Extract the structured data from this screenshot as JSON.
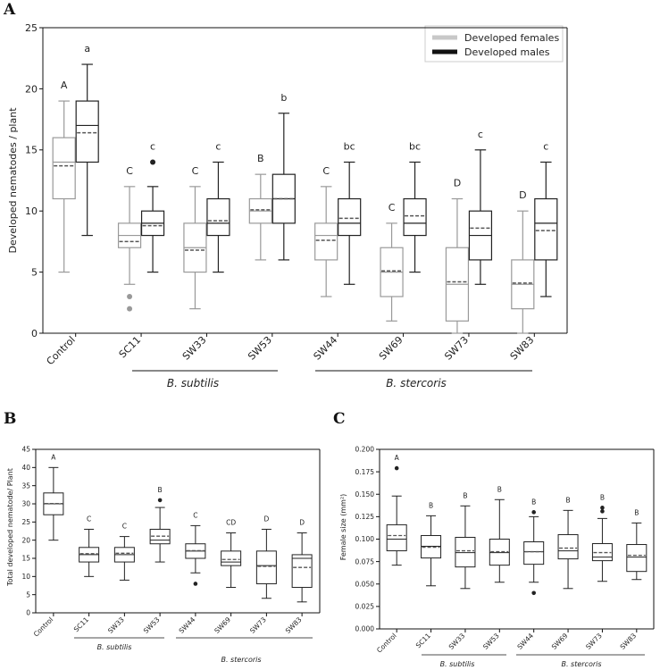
{
  "panels": {
    "A": {
      "letter": "A",
      "ylabel": "Developed nematodes / plant",
      "legend": [
        {
          "label": "Developed females",
          "color": "#c8c8c8"
        },
        {
          "label": "Developed males",
          "color": "#111111"
        }
      ],
      "group_labels": [
        "B. subtilis",
        "B. stercoris"
      ]
    },
    "B": {
      "letter": "B",
      "ylabel": "Total developed nematode/ Plant",
      "group_labels": [
        "B. subtilis",
        "B. stercoris"
      ]
    },
    "C": {
      "letter": "C",
      "ylabel": "Female size (mm²)",
      "group_labels": [
        "B. subtilis",
        "B. stercoris"
      ]
    }
  },
  "chart_data": [
    {
      "type": "box",
      "panel": "A",
      "categories": [
        "Control",
        "SC11",
        "SW33",
        "SW53",
        "SW44",
        "SW69",
        "SW73",
        "SW83"
      ],
      "ylim": [
        0,
        25
      ],
      "yticks": [
        0,
        5,
        10,
        15,
        20,
        25
      ],
      "legend_position": "top-right",
      "series": [
        {
          "name": "Developed females",
          "color": "#999999",
          "boxes": [
            {
              "min": 5,
              "q1": 11,
              "median": 14,
              "mean": 13.7,
              "q3": 16,
              "max": 19,
              "outliers": [],
              "letter": "A"
            },
            {
              "min": 4,
              "q1": 7,
              "median": 8,
              "mean": 7.5,
              "q3": 9,
              "max": 12,
              "outliers": [
                3,
                2
              ],
              "letter": "C"
            },
            {
              "min": 2,
              "q1": 5,
              "median": 7,
              "mean": 6.8,
              "q3": 9,
              "max": 12,
              "outliers": [],
              "letter": "C"
            },
            {
              "min": 6,
              "q1": 9,
              "median": 10,
              "mean": 10.1,
              "q3": 11,
              "max": 13,
              "outliers": [],
              "letter": "B"
            },
            {
              "min": 3,
              "q1": 6,
              "median": 8,
              "mean": 7.6,
              "q3": 9,
              "max": 12,
              "outliers": [],
              "letter": "C"
            },
            {
              "min": 1,
              "q1": 3,
              "median": 5,
              "mean": 5.1,
              "q3": 7,
              "max": 9,
              "outliers": [],
              "letter": "C"
            },
            {
              "min": 0,
              "q1": 1,
              "median": 4,
              "mean": 4.2,
              "q3": 7,
              "max": 11,
              "outliers": [],
              "letter": "D"
            },
            {
              "min": 0,
              "q1": 2,
              "median": 4,
              "mean": 4.1,
              "q3": 6,
              "max": 10,
              "outliers": [],
              "letter": "D"
            }
          ]
        },
        {
          "name": "Developed males",
          "color": "#222222",
          "boxes": [
            {
              "min": 8,
              "q1": 14,
              "median": 17,
              "mean": 16.4,
              "q3": 19,
              "max": 22,
              "outliers": [],
              "letter": "a"
            },
            {
              "min": 5,
              "q1": 8,
              "median": 9,
              "mean": 8.8,
              "q3": 10,
              "max": 12,
              "outliers": [
                14
              ],
              "letter": "c"
            },
            {
              "min": 5,
              "q1": 8,
              "median": 9,
              "mean": 9.2,
              "q3": 11,
              "max": 14,
              "outliers": [],
              "letter": "c"
            },
            {
              "min": 6,
              "q1": 9,
              "median": 11,
              "mean": 11,
              "q3": 13,
              "max": 18,
              "outliers": [],
              "letter": "b"
            },
            {
              "min": 4,
              "q1": 8,
              "median": 9,
              "mean": 9.4,
              "q3": 11,
              "max": 14,
              "outliers": [],
              "letter": "bc"
            },
            {
              "min": 5,
              "q1": 8,
              "median": 9,
              "mean": 9.6,
              "q3": 11,
              "max": 14,
              "outliers": [],
              "letter": "bc"
            },
            {
              "min": 4,
              "q1": 6,
              "median": 8,
              "mean": 8.6,
              "q3": 10,
              "max": 15,
              "outliers": [],
              "letter": "c"
            },
            {
              "min": 3,
              "q1": 6,
              "median": 9,
              "mean": 8.4,
              "q3": 11,
              "max": 14,
              "outliers": [],
              "letter": "c"
            }
          ]
        }
      ]
    },
    {
      "type": "box",
      "panel": "B",
      "categories": [
        "Control",
        "SC11",
        "SW33",
        "SW53",
        "SW44",
        "SW69",
        "SW73",
        "SW83"
      ],
      "ylim": [
        0,
        45
      ],
      "yticks": [
        0,
        5,
        10,
        15,
        20,
        25,
        30,
        35,
        40,
        45
      ],
      "series": [
        {
          "name": "",
          "color": "#222222",
          "boxes": [
            {
              "min": 20,
              "q1": 27,
              "median": 30,
              "mean": 30.1,
              "q3": 33,
              "max": 40,
              "outliers": [],
              "letter": "A"
            },
            {
              "min": 10,
              "q1": 14,
              "median": 16,
              "mean": 16.3,
              "q3": 18,
              "max": 23,
              "outliers": [],
              "letter": "C"
            },
            {
              "min": 9,
              "q1": 14,
              "median": 16,
              "mean": 16.4,
              "q3": 18,
              "max": 21,
              "outliers": [],
              "letter": "C"
            },
            {
              "min": 14,
              "q1": 19,
              "median": 20,
              "mean": 21.1,
              "q3": 23,
              "max": 29,
              "outliers": [
                31
              ],
              "letter": "B"
            },
            {
              "min": 11,
              "q1": 15,
              "median": 17,
              "mean": 17.1,
              "q3": 19,
              "max": 24,
              "outliers": [
                8
              ],
              "letter": "C"
            },
            {
              "min": 7,
              "q1": 13,
              "median": 14,
              "mean": 14.7,
              "q3": 17,
              "max": 22,
              "outliers": [],
              "letter": "CD"
            },
            {
              "min": 4,
              "q1": 8,
              "median": 13,
              "mean": 12.8,
              "q3": 17,
              "max": 23,
              "outliers": [],
              "letter": "D"
            },
            {
              "min": 3,
              "q1": 7,
              "median": 15,
              "mean": 12.5,
              "q3": 16,
              "max": 22,
              "outliers": [],
              "letter": "D"
            }
          ]
        }
      ]
    },
    {
      "type": "box",
      "panel": "C",
      "categories": [
        "Control",
        "SC11",
        "SW33",
        "SW53",
        "SW44",
        "SW69",
        "SW73",
        "SW83"
      ],
      "ylim": [
        0,
        0.2
      ],
      "yticks": [
        0.0,
        0.025,
        0.05,
        0.075,
        0.1,
        0.125,
        0.15,
        0.175,
        0.2
      ],
      "series": [
        {
          "name": "",
          "color": "#222222",
          "boxes": [
            {
              "min": 0.071,
              "q1": 0.087,
              "median": 0.1,
              "mean": 0.104,
              "q3": 0.116,
              "max": 0.148,
              "outliers": [
                0.179
              ],
              "letter": "A"
            },
            {
              "min": 0.048,
              "q1": 0.079,
              "median": 0.092,
              "mean": 0.091,
              "q3": 0.104,
              "max": 0.126,
              "outliers": [],
              "letter": "B"
            },
            {
              "min": 0.045,
              "q1": 0.069,
              "median": 0.085,
              "mean": 0.087,
              "q3": 0.102,
              "max": 0.137,
              "outliers": [],
              "letter": "B"
            },
            {
              "min": 0.052,
              "q1": 0.071,
              "median": 0.085,
              "mean": 0.086,
              "q3": 0.1,
              "max": 0.144,
              "outliers": [],
              "letter": "B"
            },
            {
              "min": 0.052,
              "q1": 0.072,
              "median": 0.086,
              "mean": 0.086,
              "q3": 0.097,
              "max": 0.125,
              "outliers": [
                0.13,
                0.04
              ],
              "letter": "B"
            },
            {
              "min": 0.045,
              "q1": 0.078,
              "median": 0.087,
              "mean": 0.09,
              "q3": 0.105,
              "max": 0.132,
              "outliers": [],
              "letter": "B"
            },
            {
              "min": 0.053,
              "q1": 0.076,
              "median": 0.08,
              "mean": 0.085,
              "q3": 0.095,
              "max": 0.123,
              "outliers": [
                0.131,
                0.135
              ],
              "letter": "B"
            },
            {
              "min": 0.055,
              "q1": 0.064,
              "median": 0.08,
              "mean": 0.082,
              "q3": 0.094,
              "max": 0.118,
              "outliers": [],
              "letter": "B"
            }
          ]
        }
      ]
    }
  ]
}
